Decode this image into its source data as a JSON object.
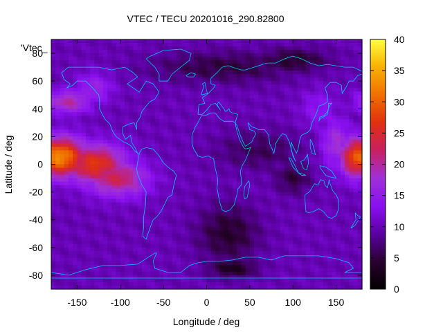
{
  "chart_data": {
    "type": "heatmap",
    "title": "VTEC / TECU 20201016_290.82800",
    "xlabel": "Longitude / deg",
    "ylabel": "Latitude / deg",
    "series_key": "'Vtec_",
    "xlim": [
      -180,
      180
    ],
    "ylim": [
      -90,
      90
    ],
    "x_ticks": [
      -150,
      -100,
      -50,
      0,
      50,
      100,
      150
    ],
    "y_ticks": [
      -80,
      -60,
      -40,
      -20,
      0,
      20,
      40,
      60,
      80
    ],
    "colorbar": {
      "range": [
        0,
        40
      ],
      "ticks": [
        0,
        5,
        10,
        15,
        20,
        25,
        30,
        35,
        40
      ],
      "palette": [
        "#000000",
        "#2a0030",
        "#5a00a0",
        "#8a10f0",
        "#a030d8",
        "#c82060",
        "#e03010",
        "#f07000",
        "#f8b000",
        "#ffff40"
      ]
    },
    "coastline_color": "#00c8ff",
    "grid_resolution_deg": {
      "lon": 5,
      "lat": 2.5
    },
    "tec_features": [
      {
        "lon": -170,
        "lat": 5,
        "value": 33,
        "sigma_lon": 22,
        "sigma_lat": 10
      },
      {
        "lon": -130,
        "lat": 0,
        "value": 27,
        "sigma_lon": 25,
        "sigma_lat": 10
      },
      {
        "lon": -105,
        "lat": -10,
        "value": 23,
        "sigma_lon": 25,
        "sigma_lat": 9
      },
      {
        "lon": -85,
        "lat": -15,
        "value": 18,
        "sigma_lon": 12,
        "sigma_lat": 7
      },
      {
        "lon": -160,
        "lat": 45,
        "value": 20,
        "sigma_lon": 18,
        "sigma_lat": 6
      },
      {
        "lon": -130,
        "lat": 55,
        "value": 16,
        "sigma_lon": 15,
        "sigma_lat": 8
      },
      {
        "lon": 175,
        "lat": 5,
        "value": 30,
        "sigma_lon": 14,
        "sigma_lat": 10
      },
      {
        "lon": 150,
        "lat": 15,
        "value": 18,
        "sigma_lon": 12,
        "sigma_lat": 12
      },
      {
        "lon": 130,
        "lat": 40,
        "value": 14,
        "sigma_lon": 15,
        "sigma_lat": 10
      }
    ],
    "low_features": [
      {
        "lon": 20,
        "lat": 70,
        "value": 5,
        "sigma_lon": 60,
        "sigma_lat": 8
      },
      {
        "lon": 100,
        "lat": 75,
        "value": 4,
        "sigma_lon": 30,
        "sigma_lat": 6
      },
      {
        "lon": 60,
        "lat": 10,
        "value": 6,
        "sigma_lon": 35,
        "sigma_lat": 10
      },
      {
        "lon": 100,
        "lat": -10,
        "value": 5,
        "sigma_lon": 15,
        "sigma_lat": 8
      },
      {
        "lon": 25,
        "lat": -50,
        "value": 4,
        "sigma_lon": 25,
        "sigma_lat": 15
      },
      {
        "lon": 30,
        "lat": -75,
        "value": 3,
        "sigma_lon": 20,
        "sigma_lat": 5
      }
    ],
    "background_value": 10
  }
}
